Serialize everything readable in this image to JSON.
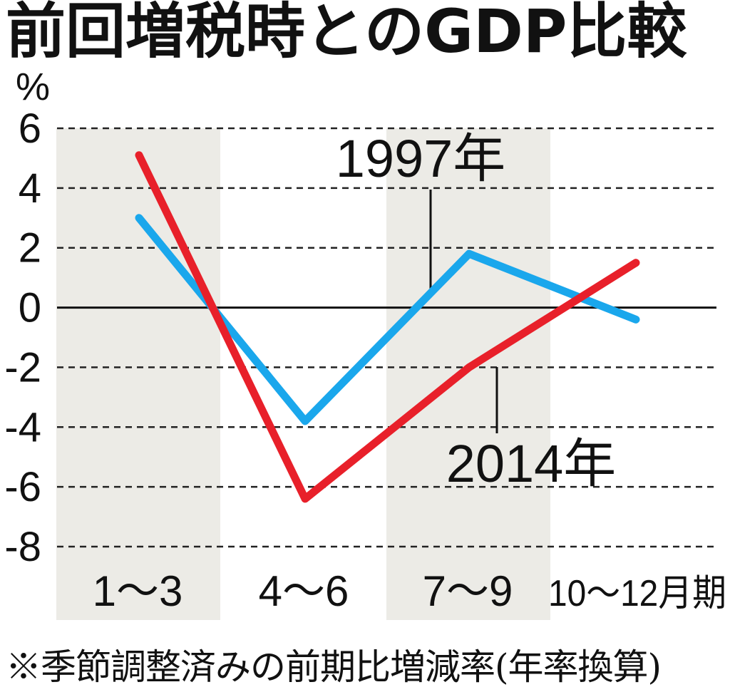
{
  "title": "前回増税時とのGDP比較",
  "footnote": "※季節調整済みの前期比増減率(年率換算)",
  "colors": {
    "series_1997": "#1aa7ec",
    "series_2014": "#e8202a",
    "shade": "#ecebe6",
    "grid": "#222222"
  },
  "chart_data": {
    "type": "line",
    "ylabel": "%",
    "ylim": [
      -8,
      6
    ],
    "yticks": [
      "6",
      "4",
      "2",
      "0",
      "-2",
      "-4",
      "-6",
      "-8"
    ],
    "ytick_values": [
      6,
      4,
      2,
      0,
      -2,
      -4,
      -6,
      -8
    ],
    "categories": [
      "1～3",
      "4～6",
      "7～9",
      "10～12月期"
    ],
    "grid": "dashed-horizontal",
    "shaded_categories": [
      0,
      2
    ],
    "series": [
      {
        "name": "1997年",
        "values": [
          3.0,
          -3.8,
          1.8,
          -0.4
        ]
      },
      {
        "name": "2014年",
        "values": [
          5.1,
          -6.4,
          -2.0,
          1.5
        ]
      }
    ]
  }
}
